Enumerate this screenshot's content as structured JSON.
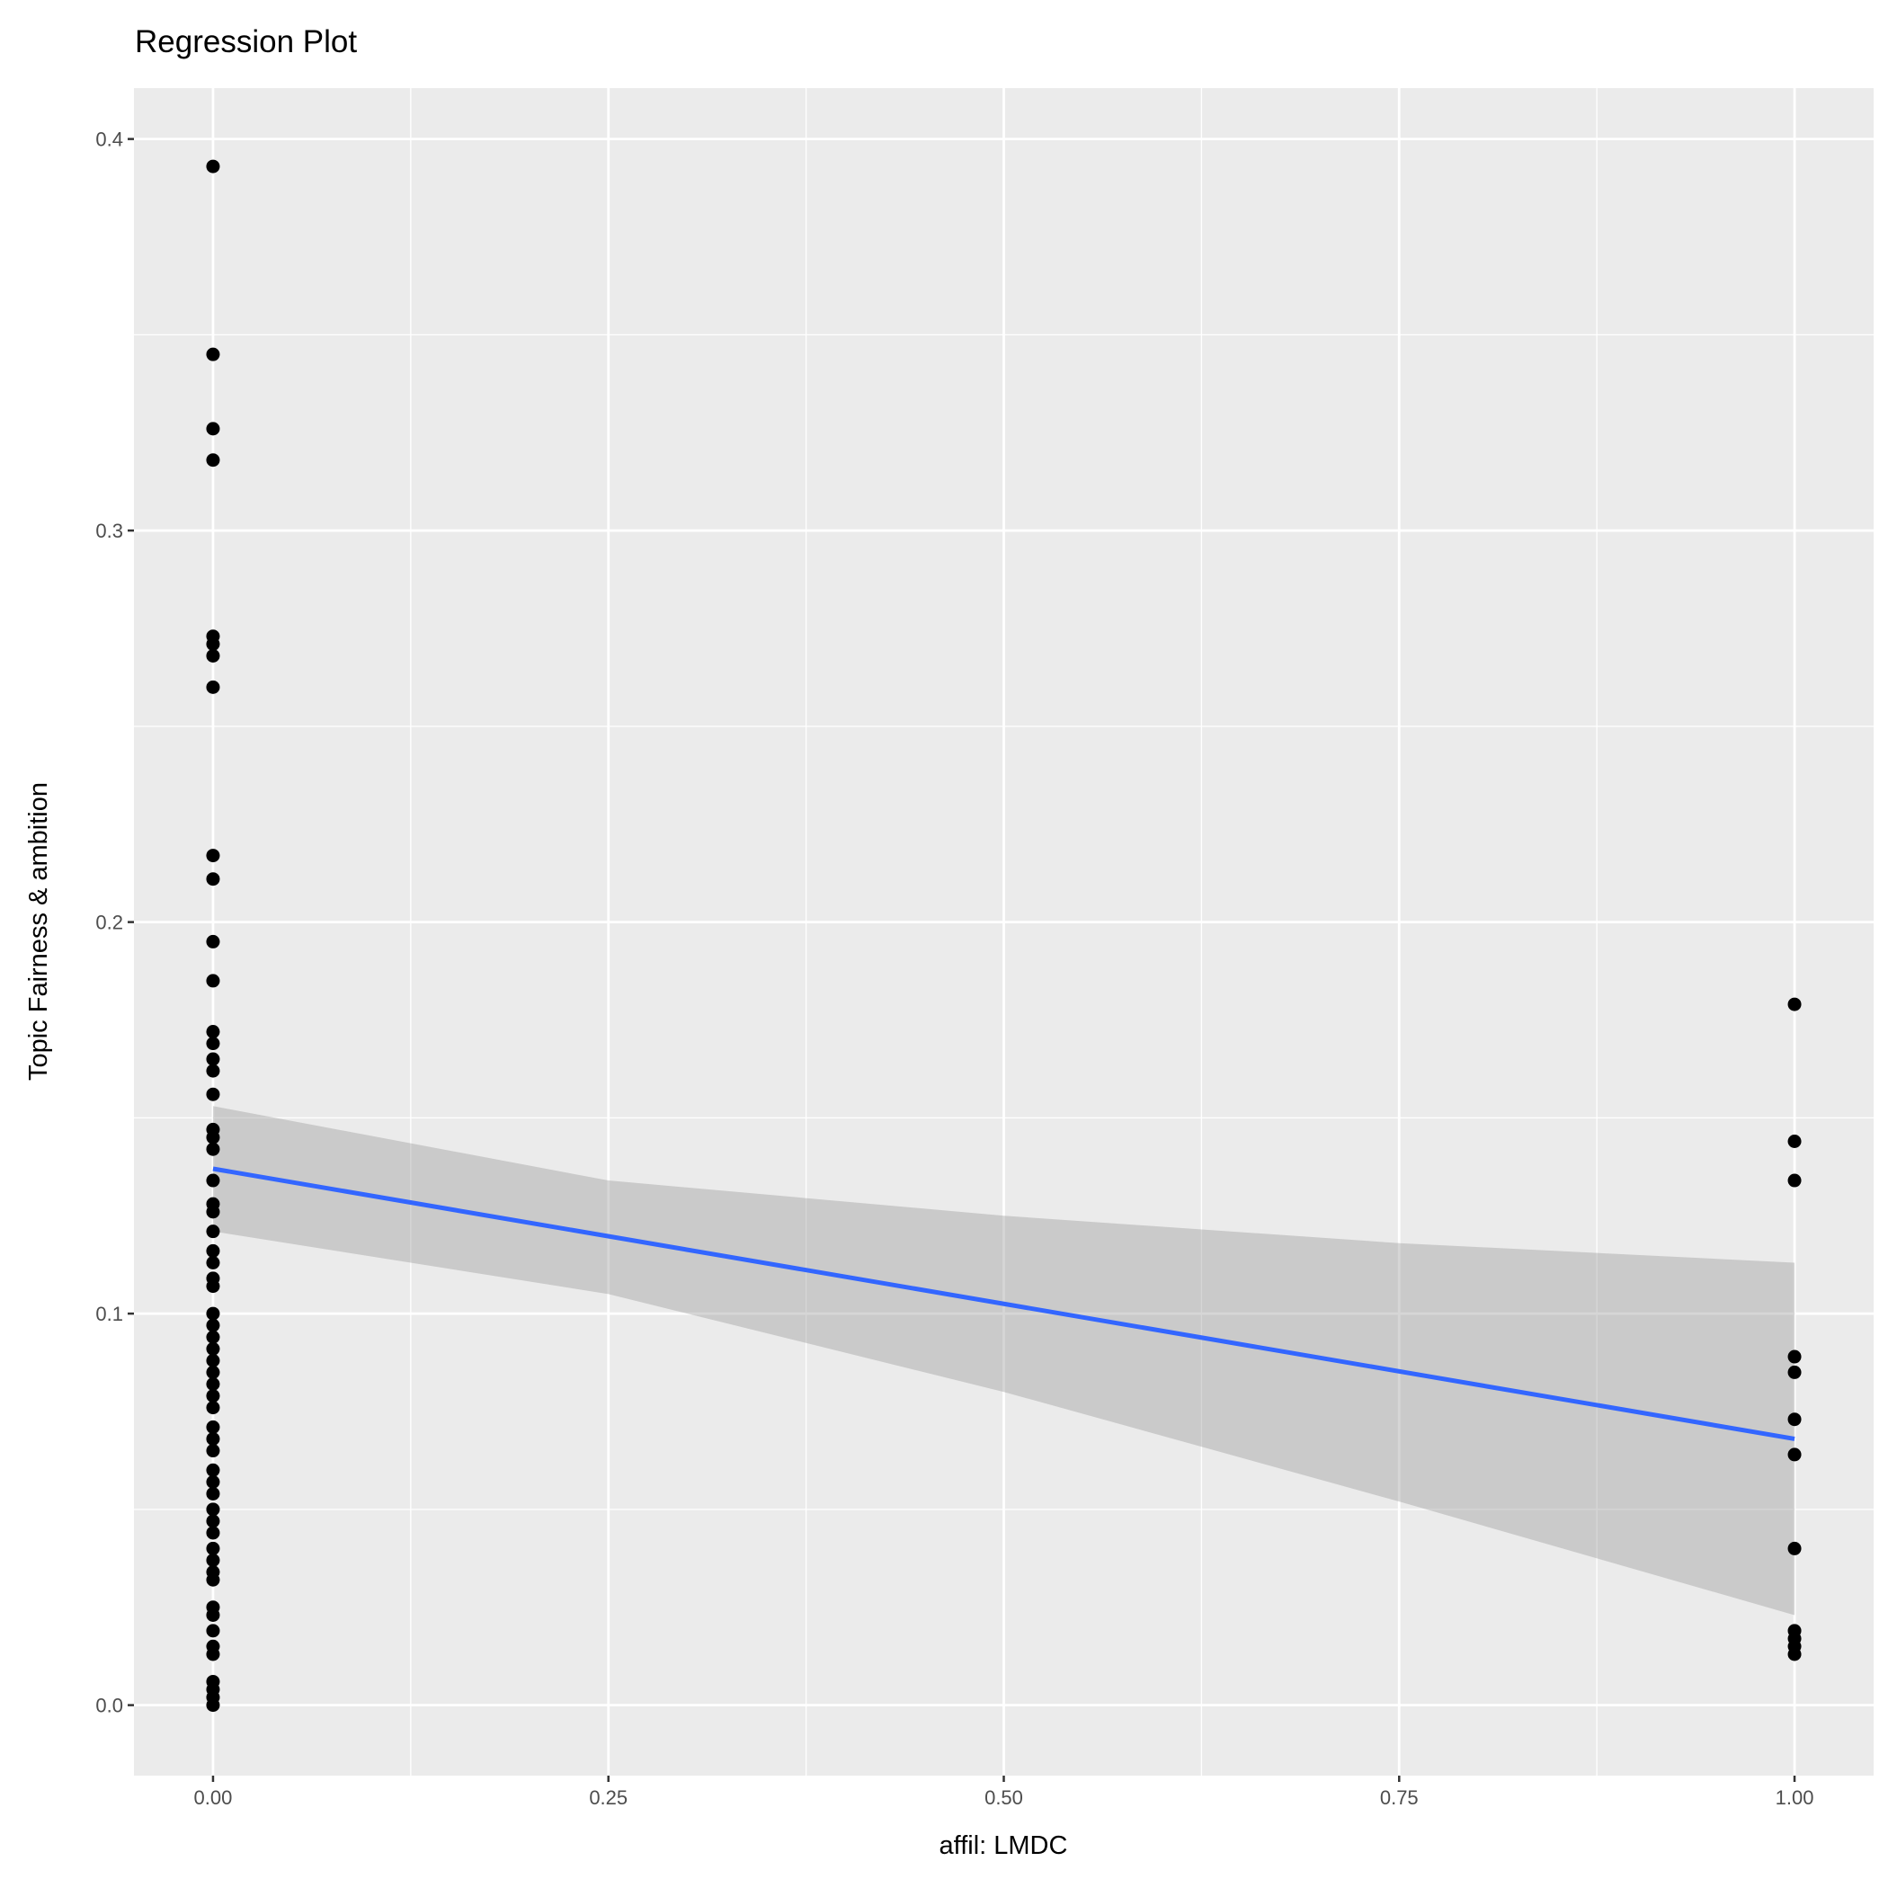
{
  "chart_data": {
    "type": "scatter",
    "title": "Regression Plot",
    "xlabel": "affil: LMDC",
    "ylabel": "Topic Fairness & ambition",
    "xlim": [
      -0.05,
      1.05
    ],
    "ylim": [
      -0.018,
      0.413
    ],
    "xticks": [
      0,
      0.25,
      0.5,
      0.75,
      1
    ],
    "xtick_labels": [
      "0.00",
      "0.25",
      "0.50",
      "0.75",
      "1.00"
    ],
    "yticks": [
      0,
      0.1,
      0.2,
      0.3,
      0.4
    ],
    "ytick_labels": [
      "0.0",
      "0.1",
      "0.2",
      "0.3",
      "0.4"
    ],
    "grid": true,
    "points": [
      {
        "x": 0,
        "y": [
          0.393,
          0.345,
          0.326,
          0.318,
          0.273,
          0.271,
          0.268,
          0.26,
          0.217,
          0.211,
          0.195,
          0.185,
          0.172,
          0.169,
          0.165,
          0.162,
          0.156,
          0.147,
          0.145,
          0.142,
          0.134,
          0.128,
          0.126,
          0.121,
          0.116,
          0.113,
          0.109,
          0.107,
          0.1,
          0.097,
          0.094,
          0.091,
          0.088,
          0.085,
          0.082,
          0.079,
          0.076,
          0.071,
          0.068,
          0.065,
          0.06,
          0.057,
          0.054,
          0.05,
          0.047,
          0.044,
          0.04,
          0.037,
          0.034,
          0.032,
          0.025,
          0.023,
          0.019,
          0.015,
          0.013,
          0.006,
          0.004,
          0.002,
          0.0
        ]
      },
      {
        "x": 1,
        "y": [
          0.179,
          0.144,
          0.134,
          0.089,
          0.085,
          0.073,
          0.064,
          0.04,
          0.019,
          0.017,
          0.015,
          0.013
        ]
      }
    ],
    "fit": {
      "x": [
        0,
        1
      ],
      "y": [
        0.137,
        0.068
      ],
      "color": "#3366FF"
    },
    "ci": {
      "x": [
        0,
        0.25,
        0.5,
        0.75,
        1
      ],
      "lower": [
        0.121,
        0.105,
        0.08,
        0.052,
        0.023
      ],
      "upper": [
        0.153,
        0.134,
        0.125,
        0.118,
        0.113
      ],
      "color": "#999999"
    },
    "panel_color": "#EBEBEB",
    "point_color": "#000000"
  }
}
